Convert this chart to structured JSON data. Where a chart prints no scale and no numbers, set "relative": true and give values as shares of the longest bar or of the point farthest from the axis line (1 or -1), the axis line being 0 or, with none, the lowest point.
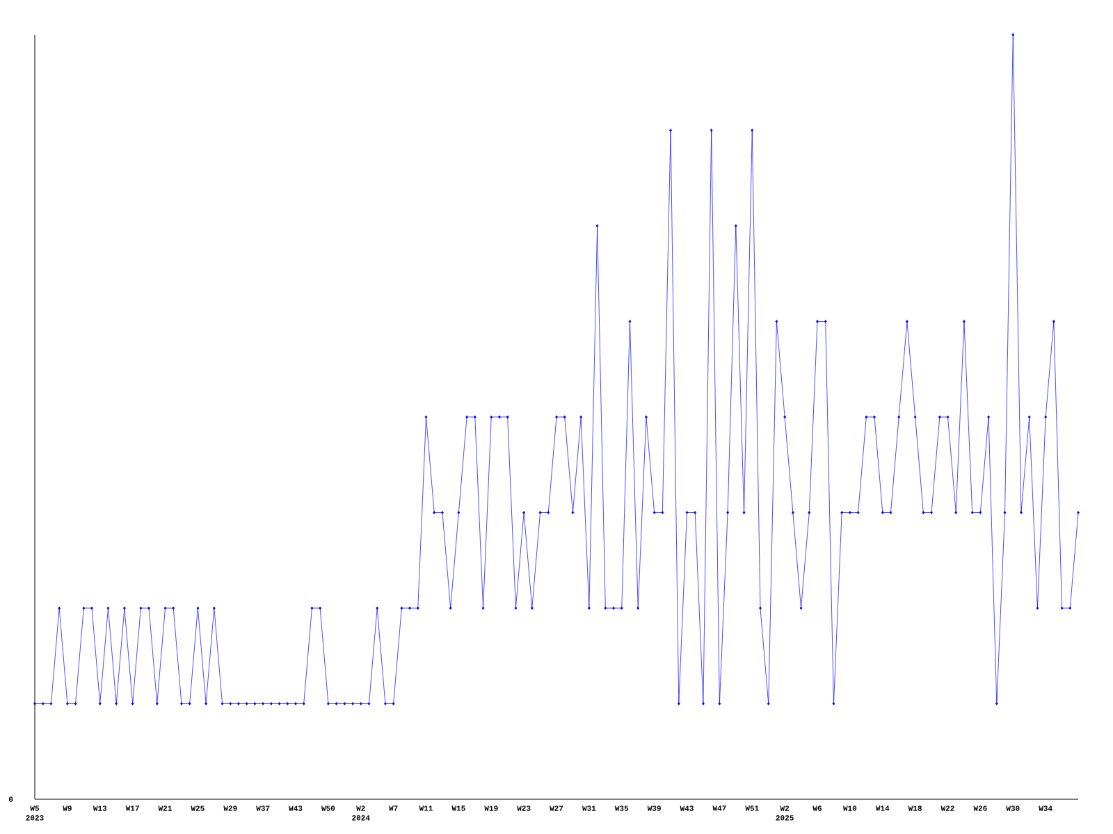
{
  "chart_data": {
    "type": "line",
    "relative": true,
    "color": "#0000ff",
    "marker": "diamond",
    "grid": false,
    "categories": [
      "W5",
      null,
      null,
      null,
      "W9",
      null,
      null,
      null,
      "W13",
      null,
      null,
      null,
      "W17",
      null,
      null,
      null,
      "W21",
      null,
      null,
      null,
      "W25",
      null,
      null,
      null,
      "W29",
      null,
      null,
      null,
      "W37",
      null,
      null,
      null,
      "W43",
      null,
      null,
      null,
      "W50",
      null,
      null,
      null,
      "W2",
      null,
      null,
      null,
      "W7",
      null,
      null,
      null,
      "W11",
      null,
      null,
      null,
      "W15",
      null,
      null,
      null,
      "W19",
      null,
      null,
      null,
      "W23",
      null,
      null,
      null,
      "W27",
      null,
      null,
      null,
      "W31",
      null,
      null,
      null,
      "W35",
      null,
      null,
      null,
      "W39",
      null,
      null,
      null,
      "W43",
      null,
      null,
      null,
      "W47",
      null,
      null,
      null,
      "W51",
      null,
      null,
      null,
      "W2",
      null,
      null,
      null,
      "W6",
      null,
      null,
      null,
      "W10",
      null,
      null,
      null,
      "W14",
      null,
      null,
      null,
      "W18",
      null,
      null,
      null,
      "W22",
      null,
      null,
      null,
      "W26",
      null,
      null,
      null,
      "W30",
      null,
      null,
      null,
      "W34",
      null,
      null,
      null,
      null
    ],
    "values": [
      0.125,
      0.125,
      0.125,
      0.25,
      0.125,
      0.125,
      0.25,
      0.25,
      0.125,
      0.25,
      0.125,
      0.25,
      0.125,
      0.25,
      0.25,
      0.125,
      0.25,
      0.25,
      0.125,
      0.125,
      0.25,
      0.125,
      0.25,
      0.125,
      0.125,
      0.125,
      0.125,
      0.125,
      0.125,
      0.125,
      0.125,
      0.125,
      0.125,
      0.125,
      0.25,
      0.25,
      0.125,
      0.125,
      0.125,
      0.125,
      0.125,
      0.125,
      0.25,
      0.125,
      0.125,
      0.25,
      0.25,
      0.25,
      0.5,
      0.375,
      0.375,
      0.25,
      0.375,
      0.5,
      0.5,
      0.25,
      0.5,
      0.5,
      0.5,
      0.25,
      0.375,
      0.25,
      0.375,
      0.375,
      0.5,
      0.5,
      0.375,
      0.5,
      0.25,
      0.75,
      0.25,
      0.25,
      0.25,
      0.625,
      0.25,
      0.5,
      0.375,
      0.375,
      0.875,
      0.125,
      0.375,
      0.375,
      0.125,
      0.875,
      0.125,
      0.375,
      0.75,
      0.375,
      0.875,
      0.25,
      0.125,
      0.625,
      0.5,
      0.375,
      0.25,
      0.375,
      0.625,
      0.625,
      0.125,
      0.375,
      0.375,
      0.375,
      0.5,
      0.5,
      0.375,
      0.375,
      0.5,
      0.625,
      0.5,
      0.375,
      0.375,
      0.5,
      0.5,
      0.375,
      0.625,
      0.375,
      0.375,
      0.5,
      0.125,
      0.375,
      1,
      0.375,
      0.5,
      0.25,
      0.5,
      0.625,
      0.25,
      0.25,
      0.375
    ],
    "annotations": [
      "0",
      "2023",
      "2024",
      "2025"
    ]
  }
}
